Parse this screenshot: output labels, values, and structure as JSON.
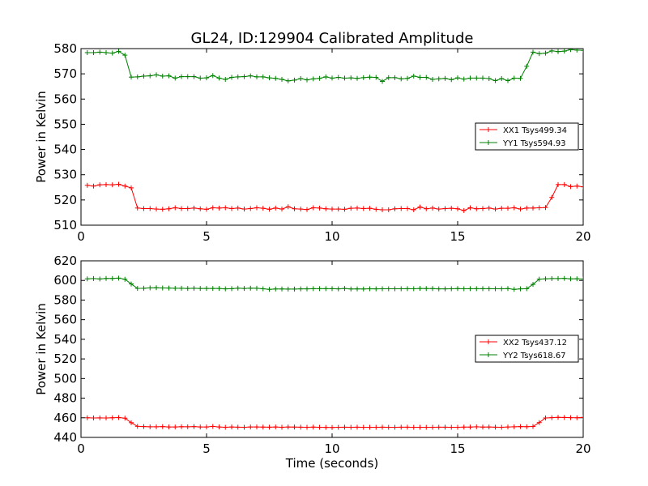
{
  "figure_title": "GL24, ID:129904 Calibrated Amplitude",
  "colors": {
    "xx": "#ff0000",
    "yy": "#008000",
    "axes": "#000000"
  },
  "chart_data": [
    {
      "type": "line",
      "title": "GL24, ID:129904 Calibrated Amplitude",
      "xlabel": "",
      "ylabel": "Power in Kelvin",
      "xlim": [
        0,
        20
      ],
      "ylim": [
        510,
        580
      ],
      "xticks": [
        0,
        5,
        10,
        15,
        20
      ],
      "yticks": [
        510,
        520,
        530,
        540,
        550,
        560,
        570,
        580
      ],
      "grid": false,
      "legend_position": "right",
      "x": [
        0.25,
        0.5,
        0.75,
        1.0,
        1.25,
        1.5,
        1.75,
        2.0,
        2.25,
        2.5,
        2.75,
        3.0,
        3.25,
        3.5,
        3.75,
        4.0,
        4.25,
        4.5,
        4.75,
        5.0,
        5.25,
        5.5,
        5.75,
        6.0,
        6.25,
        6.5,
        6.75,
        7.0,
        7.25,
        7.5,
        7.75,
        8.0,
        8.25,
        8.5,
        8.75,
        9.0,
        9.25,
        9.5,
        9.75,
        10.0,
        10.25,
        10.5,
        10.75,
        11.0,
        11.25,
        11.5,
        11.75,
        12.0,
        12.25,
        12.5,
        12.75,
        13.0,
        13.25,
        13.5,
        13.75,
        14.0,
        14.25,
        14.5,
        14.75,
        15.0,
        15.25,
        15.5,
        15.75,
        16.0,
        16.25,
        16.5,
        16.75,
        17.0,
        17.25,
        17.5,
        17.75,
        18.0,
        18.25,
        18.5,
        18.75,
        19.0,
        19.25,
        19.5,
        19.75,
        20.0
      ],
      "series": [
        {
          "name": "XX1 Tsys499.34",
          "color": "#ff0000",
          "values": [
            525.8,
            525.5,
            526.0,
            526.1,
            526.0,
            526.2,
            525.5,
            524.8,
            516.8,
            516.6,
            516.6,
            516.4,
            516.3,
            516.5,
            516.9,
            516.6,
            516.6,
            516.8,
            516.5,
            516.3,
            516.9,
            516.8,
            516.9,
            516.6,
            516.8,
            516.4,
            516.6,
            516.9,
            516.7,
            516.3,
            516.8,
            516.4,
            517.3,
            516.5,
            516.4,
            516.2,
            516.9,
            516.8,
            516.5,
            516.4,
            516.4,
            516.3,
            516.7,
            516.8,
            516.6,
            516.7,
            516.3,
            516.1,
            516.1,
            516.5,
            516.6,
            516.6,
            516.1,
            517.2,
            516.5,
            516.8,
            516.4,
            516.6,
            516.7,
            516.5,
            515.8,
            516.9,
            516.5,
            516.6,
            516.8,
            516.4,
            516.7,
            516.7,
            516.9,
            516.4,
            516.8,
            516.8,
            516.9,
            517.0,
            521.0,
            526.1,
            526.1,
            525.3,
            525.5,
            525.2
          ]
        },
        {
          "name": "YY1 Tsys594.93",
          "color": "#008000",
          "values": [
            578.4,
            578.4,
            578.6,
            578.4,
            578.2,
            578.9,
            577.4,
            568.7,
            568.8,
            569.1,
            569.2,
            569.6,
            569.1,
            569.2,
            568.3,
            568.9,
            568.9,
            568.9,
            568.3,
            568.4,
            569.3,
            568.3,
            567.8,
            568.6,
            568.8,
            568.9,
            569.2,
            568.8,
            568.8,
            568.4,
            568.2,
            567.8,
            567.2,
            567.5,
            568.1,
            567.6,
            568.0,
            568.2,
            568.8,
            568.3,
            568.6,
            568.3,
            568.4,
            568.2,
            568.5,
            568.7,
            568.6,
            567.0,
            568.5,
            568.5,
            568.0,
            568.2,
            569.1,
            568.6,
            568.6,
            567.8,
            568.0,
            568.2,
            567.7,
            568.4,
            567.9,
            568.3,
            568.3,
            568.3,
            568.1,
            567.3,
            568.1,
            567.3,
            568.3,
            568.2,
            573.0,
            578.6,
            578.0,
            578.2,
            579.1,
            578.8,
            579.0,
            579.6,
            579.4,
            579.3
          ]
        }
      ]
    },
    {
      "type": "line",
      "title": "",
      "xlabel": "Time (seconds)",
      "ylabel": "Power in Kelvin",
      "xlim": [
        0,
        20
      ],
      "ylim": [
        440,
        620
      ],
      "xticks": [
        0,
        5,
        10,
        15,
        20
      ],
      "yticks": [
        440,
        460,
        480,
        500,
        520,
        540,
        560,
        580,
        600,
        620
      ],
      "grid": false,
      "legend_position": "right",
      "x": [
        0.25,
        0.5,
        0.75,
        1.0,
        1.25,
        1.5,
        1.75,
        2.0,
        2.25,
        2.5,
        2.75,
        3.0,
        3.25,
        3.5,
        3.75,
        4.0,
        4.25,
        4.5,
        4.75,
        5.0,
        5.25,
        5.5,
        5.75,
        6.0,
        6.25,
        6.5,
        6.75,
        7.0,
        7.25,
        7.5,
        7.75,
        8.0,
        8.25,
        8.5,
        8.75,
        9.0,
        9.25,
        9.5,
        9.75,
        10.0,
        10.25,
        10.5,
        10.75,
        11.0,
        11.25,
        11.5,
        11.75,
        12.0,
        12.25,
        12.5,
        12.75,
        13.0,
        13.25,
        13.5,
        13.75,
        14.0,
        14.25,
        14.5,
        14.75,
        15.0,
        15.25,
        15.5,
        15.75,
        16.0,
        16.25,
        16.5,
        16.75,
        17.0,
        17.25,
        17.5,
        17.75,
        18.0,
        18.25,
        18.5,
        18.75,
        19.0,
        19.25,
        19.5,
        19.75,
        20.0
      ],
      "series": [
        {
          "name": "XX2 Tsys437.12",
          "color": "#ff0000",
          "values": [
            460.0,
            459.8,
            459.9,
            459.8,
            460.0,
            460.2,
            459.6,
            455.0,
            451.3,
            451.0,
            450.8,
            450.8,
            451.0,
            450.6,
            450.6,
            450.9,
            450.8,
            451.0,
            450.6,
            450.6,
            451.2,
            450.6,
            450.3,
            450.6,
            450.4,
            450.3,
            450.6,
            450.6,
            450.5,
            450.4,
            450.6,
            450.3,
            450.6,
            450.5,
            450.4,
            450.3,
            450.5,
            450.3,
            450.2,
            450.1,
            450.3,
            450.4,
            450.3,
            450.4,
            450.3,
            450.3,
            450.3,
            450.4,
            450.3,
            450.3,
            450.4,
            450.4,
            450.3,
            450.3,
            450.3,
            450.3,
            450.4,
            450.4,
            450.3,
            450.3,
            450.5,
            450.5,
            450.8,
            450.5,
            450.6,
            450.4,
            450.3,
            450.6,
            450.8,
            451.0,
            450.9,
            451.1,
            455.1,
            459.8,
            460.1,
            460.4,
            460.3,
            460.1,
            460.0,
            460.4
          ]
        },
        {
          "name": "YY2 Tsys618.67",
          "color": "#008000",
          "values": [
            601.6,
            601.9,
            601.5,
            602.0,
            602.0,
            602.4,
            601.2,
            596.4,
            591.9,
            592.0,
            592.4,
            592.5,
            592.3,
            592.2,
            592.0,
            592.0,
            591.8,
            592.0,
            591.8,
            591.8,
            591.8,
            591.8,
            591.4,
            591.6,
            592.1,
            591.8,
            592.1,
            592.0,
            591.5,
            590.9,
            591.3,
            591.3,
            591.2,
            591.2,
            591.4,
            591.4,
            591.6,
            591.6,
            591.6,
            591.6,
            591.4,
            591.8,
            591.3,
            591.4,
            591.3,
            591.5,
            591.4,
            591.5,
            591.5,
            591.5,
            591.5,
            591.6,
            591.5,
            591.8,
            591.7,
            591.7,
            591.4,
            591.4,
            591.5,
            591.7,
            591.5,
            591.6,
            591.6,
            591.6,
            591.6,
            591.5,
            591.5,
            591.7,
            590.9,
            591.4,
            591.6,
            596.0,
            601.3,
            601.6,
            601.9,
            601.9,
            602.1,
            601.6,
            601.7,
            601.4
          ]
        }
      ]
    }
  ]
}
